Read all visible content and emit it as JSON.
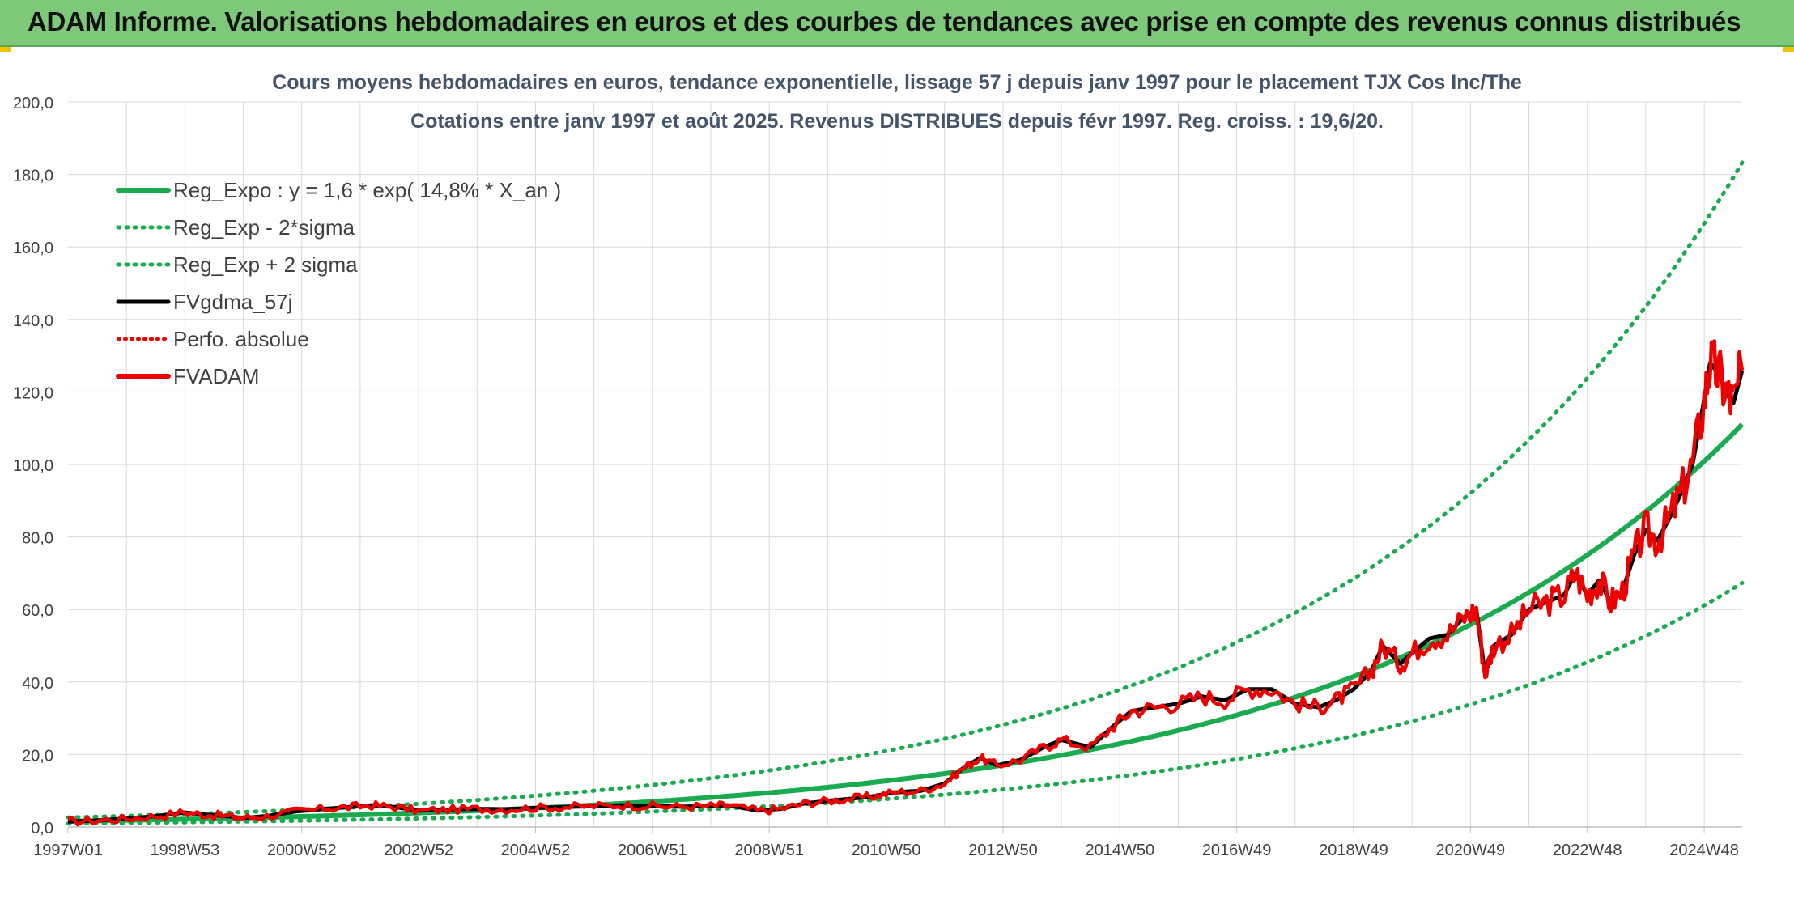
{
  "banner": {
    "title": "ADAM Informe. Valorisations hebdomadaires en euros et des courbes de tendances avec prise en compte des revenus connus distribués"
  },
  "chart_data": {
    "type": "line",
    "title_line1": "Cours moyens hebdomadaires en euros, tendance exponentielle, lissage 57 j depuis janv 1997 pour le placement TJX Cos Inc/The",
    "title_line2": "Cotations entre janv 1997 et août 2025. Revenus DISTRIBUES depuis févr 1997. Reg. croiss. : 19,6/20.",
    "x_ticks": [
      "1997W01",
      "1998W53",
      "2000W52",
      "2002W52",
      "2004W52",
      "2006W51",
      "2008W51",
      "2010W50",
      "2012W50",
      "2014W50",
      "2016W49",
      "2018W49",
      "2020W49",
      "2022W48",
      "2024W48"
    ],
    "y_ticks": [
      "0,0",
      "20,0",
      "40,0",
      "60,0",
      "80,0",
      "100,0",
      "120,0",
      "140,0",
      "160,0",
      "180,0",
      "200,0"
    ],
    "ylim": [
      0,
      200
    ],
    "xlim": [
      1997.0,
      2025.65
    ],
    "grid": true,
    "legend_position": "top-left",
    "colors": {
      "green": "#1aaa50",
      "black": "#000000",
      "red": "#ee0000",
      "grid": "#d9d9d9",
      "text": "#404040"
    },
    "trend_params": {
      "a": 1.6,
      "rate": 0.148,
      "sigma_factor": 1.65
    },
    "series": [
      {
        "name": "Reg_Expo : y = 1,6 * exp( 14,8% *  X_an )",
        "style": "solid-green"
      },
      {
        "name": "Reg_Exp - 2*sigma",
        "style": "dotted-green"
      },
      {
        "name": "Reg_Exp + 2 sigma",
        "style": "dotted-green"
      },
      {
        "name": "FVgdma_57j",
        "style": "solid-black"
      },
      {
        "name": "Perfo. absolue",
        "style": "dotted-red"
      },
      {
        "name": "FVADAM",
        "style": "solid-red"
      }
    ],
    "fvadam_points": [
      [
        1997.0,
        1.5
      ],
      [
        1997.5,
        1.8
      ],
      [
        1998.0,
        2.3
      ],
      [
        1998.5,
        3.0
      ],
      [
        1999.0,
        4.0
      ],
      [
        1999.3,
        3.5
      ],
      [
        1999.7,
        3.0
      ],
      [
        2000.0,
        2.5
      ],
      [
        2000.4,
        3.0
      ],
      [
        2000.9,
        4.3
      ],
      [
        2001.4,
        5.0
      ],
      [
        2001.8,
        5.5
      ],
      [
        2002.2,
        6.0
      ],
      [
        2002.6,
        5.5
      ],
      [
        2003.0,
        4.5
      ],
      [
        2003.5,
        4.8
      ],
      [
        2004.0,
        5.0
      ],
      [
        2004.5,
        4.9
      ],
      [
        2005.0,
        5.3
      ],
      [
        2005.5,
        5.5
      ],
      [
        2006.0,
        5.8
      ],
      [
        2006.5,
        6.0
      ],
      [
        2007.0,
        5.8
      ],
      [
        2007.5,
        5.6
      ],
      [
        2008.0,
        5.8
      ],
      [
        2008.3,
        6.0
      ],
      [
        2008.8,
        4.5
      ],
      [
        2009.2,
        5.0
      ],
      [
        2009.6,
        6.5
      ],
      [
        2010.0,
        7.2
      ],
      [
        2010.4,
        7.8
      ],
      [
        2010.8,
        8.5
      ],
      [
        2011.1,
        9.5
      ],
      [
        2011.6,
        10.0
      ],
      [
        2012.0,
        12.0
      ],
      [
        2012.3,
        16.0
      ],
      [
        2012.6,
        19.0
      ],
      [
        2012.9,
        17.0
      ],
      [
        2013.3,
        18.5
      ],
      [
        2013.7,
        22.0
      ],
      [
        2014.0,
        24.0
      ],
      [
        2014.5,
        22.0
      ],
      [
        2014.9,
        28.0
      ],
      [
        2015.2,
        32.0
      ],
      [
        2015.6,
        33.0
      ],
      [
        2016.0,
        34.0
      ],
      [
        2016.4,
        36.0
      ],
      [
        2016.8,
        35.0
      ],
      [
        2017.2,
        38.0
      ],
      [
        2017.6,
        38.0
      ],
      [
        2018.0,
        34.0
      ],
      [
        2018.4,
        33.0
      ],
      [
        2018.7,
        35.0
      ],
      [
        2019.0,
        38.0
      ],
      [
        2019.3,
        43.0
      ],
      [
        2019.5,
        50.0
      ],
      [
        2019.8,
        45.0
      ],
      [
        2020.0,
        48.0
      ],
      [
        2020.3,
        52.0
      ],
      [
        2020.6,
        53.0
      ],
      [
        2020.9,
        58.0
      ],
      [
        2021.1,
        60.0
      ],
      [
        2021.25,
        42.0
      ],
      [
        2021.4,
        50.0
      ],
      [
        2021.7,
        53.0
      ],
      [
        2022.0,
        60.0
      ],
      [
        2022.3,
        62.0
      ],
      [
        2022.6,
        64.0
      ],
      [
        2022.8,
        70.0
      ],
      [
        2023.0,
        64.0
      ],
      [
        2023.2,
        68.0
      ],
      [
        2023.4,
        62.0
      ],
      [
        2023.6,
        65.0
      ],
      [
        2023.8,
        75.0
      ],
      [
        2024.0,
        82.0
      ],
      [
        2024.2,
        79.0
      ],
      [
        2024.4,
        85.0
      ],
      [
        2024.6,
        92.0
      ],
      [
        2024.8,
        100.0
      ],
      [
        2025.0,
        118.0
      ],
      [
        2025.1,
        128.0
      ],
      [
        2025.25,
        125.0
      ],
      [
        2025.4,
        119.0
      ],
      [
        2025.5,
        117.0
      ],
      [
        2025.65,
        126.0
      ]
    ]
  }
}
